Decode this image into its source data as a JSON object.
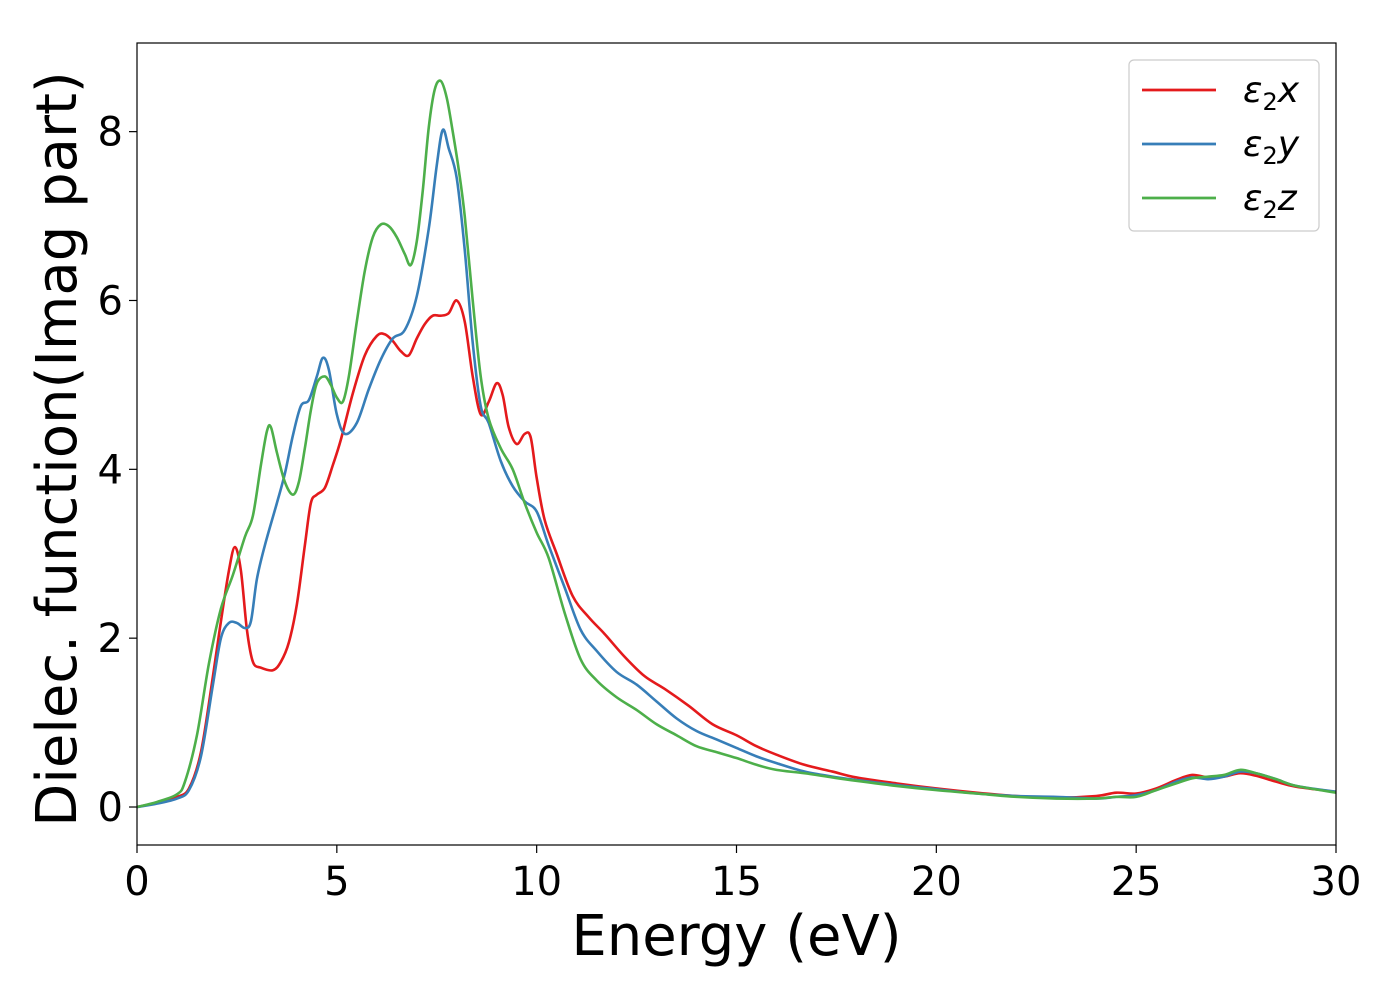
{
  "chart_data": {
    "type": "line",
    "xlabel": "Energy (eV)",
    "ylabel": "Dielec. function(Imag part)",
    "xlim": [
      0,
      30
    ],
    "ylim": [
      -0.45,
      9.05
    ],
    "xticks": [
      0,
      5,
      10,
      15,
      20,
      25,
      30
    ],
    "yticks": [
      0,
      2,
      4,
      6,
      8
    ],
    "grid": false,
    "legend_position": "top-right",
    "series": [
      {
        "name": "x",
        "legend_symbol": "ε",
        "legend_subscript": "2",
        "legend_axis": "x",
        "color": "#e41a1c",
        "x": [
          0,
          0.5,
          1.0,
          1.3,
          1.6,
          1.9,
          2.1,
          2.3,
          2.45,
          2.6,
          2.75,
          2.9,
          3.1,
          3.4,
          3.6,
          3.8,
          4.0,
          4.2,
          4.35,
          4.5,
          4.7,
          4.9,
          5.1,
          5.4,
          5.7,
          6.0,
          6.2,
          6.4,
          6.6,
          6.8,
          7.0,
          7.2,
          7.4,
          7.6,
          7.8,
          8.0,
          8.2,
          8.4,
          8.6,
          8.8,
          9.0,
          9.15,
          9.3,
          9.5,
          9.7,
          9.85,
          10.0,
          10.2,
          10.5,
          10.9,
          11.3,
          11.7,
          12.2,
          12.7,
          13.2,
          13.8,
          14.4,
          15.0,
          15.5,
          16.0,
          16.7,
          17.4,
          18.0,
          19.0,
          20.0,
          21.0,
          22.0,
          23.0,
          24.0,
          24.5,
          25.0,
          25.5,
          26.0,
          26.4,
          26.8,
          27.2,
          27.6,
          28.0,
          28.5,
          29.0,
          30.0
        ],
        "y": [
          0,
          0.05,
          0.12,
          0.22,
          0.65,
          1.55,
          2.2,
          2.8,
          3.08,
          2.8,
          2.1,
          1.72,
          1.65,
          1.62,
          1.72,
          1.95,
          2.4,
          3.1,
          3.6,
          3.7,
          3.78,
          4.05,
          4.35,
          4.9,
          5.35,
          5.58,
          5.6,
          5.52,
          5.4,
          5.35,
          5.55,
          5.72,
          5.82,
          5.82,
          5.85,
          6.0,
          5.75,
          5.1,
          4.65,
          4.8,
          5.02,
          4.88,
          4.5,
          4.3,
          4.42,
          4.38,
          3.9,
          3.4,
          3.0,
          2.5,
          2.25,
          2.05,
          1.78,
          1.55,
          1.4,
          1.2,
          0.98,
          0.85,
          0.72,
          0.62,
          0.5,
          0.42,
          0.35,
          0.28,
          0.22,
          0.17,
          0.13,
          0.11,
          0.13,
          0.17,
          0.16,
          0.22,
          0.32,
          0.38,
          0.35,
          0.36,
          0.4,
          0.37,
          0.3,
          0.24,
          0.18
        ]
      },
      {
        "name": "y",
        "legend_symbol": "ε",
        "legend_subscript": "2",
        "legend_axis": "y",
        "color": "#377eb8",
        "x": [
          0,
          0.5,
          1.0,
          1.3,
          1.6,
          1.9,
          2.1,
          2.3,
          2.5,
          2.7,
          2.85,
          3.0,
          3.2,
          3.5,
          3.7,
          3.9,
          4.1,
          4.3,
          4.5,
          4.65,
          4.8,
          5.0,
          5.2,
          5.5,
          5.8,
          6.1,
          6.4,
          6.7,
          7.0,
          7.3,
          7.5,
          7.65,
          7.8,
          8.0,
          8.2,
          8.4,
          8.6,
          8.8,
          9.1,
          9.4,
          9.7,
          10.0,
          10.3,
          10.7,
          11.1,
          11.5,
          12.0,
          12.5,
          13.0,
          13.5,
          14.0,
          14.5,
          15.0,
          15.5,
          16.0,
          16.7,
          17.4,
          18.0,
          19.0,
          20.0,
          21.0,
          22.0,
          23.0,
          24.0,
          24.5,
          25.0,
          25.5,
          26.0,
          26.4,
          26.8,
          27.2,
          27.6,
          28.0,
          28.5,
          29.0,
          30.0
        ],
        "y": [
          0,
          0.04,
          0.1,
          0.2,
          0.6,
          1.45,
          2.0,
          2.18,
          2.18,
          2.12,
          2.2,
          2.7,
          3.1,
          3.6,
          3.95,
          4.4,
          4.75,
          4.82,
          5.1,
          5.32,
          5.18,
          4.65,
          4.42,
          4.55,
          4.95,
          5.3,
          5.55,
          5.65,
          6.05,
          6.85,
          7.6,
          8.02,
          7.8,
          7.45,
          6.6,
          5.5,
          4.75,
          4.55,
          4.1,
          3.8,
          3.62,
          3.5,
          3.1,
          2.6,
          2.1,
          1.85,
          1.6,
          1.45,
          1.25,
          1.05,
          0.9,
          0.8,
          0.7,
          0.6,
          0.52,
          0.42,
          0.36,
          0.32,
          0.26,
          0.21,
          0.16,
          0.13,
          0.12,
          0.1,
          0.12,
          0.14,
          0.2,
          0.3,
          0.35,
          0.33,
          0.36,
          0.42,
          0.4,
          0.33,
          0.25,
          0.18
        ]
      },
      {
        "name": "z",
        "legend_symbol": "ε",
        "legend_subscript": "2",
        "legend_axis": "z",
        "color": "#4daf4a",
        "x": [
          0,
          0.5,
          1.0,
          1.2,
          1.5,
          1.8,
          2.1,
          2.4,
          2.7,
          2.9,
          3.1,
          3.25,
          3.35,
          3.5,
          3.7,
          3.9,
          4.05,
          4.2,
          4.35,
          4.5,
          4.7,
          4.85,
          5.0,
          5.15,
          5.3,
          5.5,
          5.7,
          5.9,
          6.1,
          6.3,
          6.5,
          6.7,
          6.85,
          7.0,
          7.15,
          7.3,
          7.45,
          7.6,
          7.75,
          7.9,
          8.05,
          8.2,
          8.4,
          8.6,
          8.8,
          9.1,
          9.4,
          9.7,
          10.0,
          10.3,
          10.7,
          11.1,
          11.5,
          12.0,
          12.5,
          13.0,
          13.5,
          14.0,
          14.5,
          15.0,
          15.5,
          16.0,
          16.7,
          17.4,
          18.0,
          19.0,
          20.0,
          21.0,
          22.0,
          23.0,
          24.0,
          24.5,
          25.0,
          25.5,
          26.0,
          26.4,
          26.8,
          27.2,
          27.6,
          28.0,
          28.5,
          29.0,
          30.0
        ],
        "y": [
          0,
          0.06,
          0.15,
          0.3,
          0.85,
          1.7,
          2.35,
          2.75,
          3.2,
          3.45,
          4.05,
          4.45,
          4.5,
          4.2,
          3.85,
          3.7,
          3.85,
          4.25,
          4.7,
          5.02,
          5.1,
          5.0,
          4.85,
          4.8,
          5.1,
          5.75,
          6.35,
          6.75,
          6.9,
          6.88,
          6.75,
          6.55,
          6.42,
          6.7,
          7.3,
          8.05,
          8.5,
          8.6,
          8.4,
          8.0,
          7.55,
          7.0,
          6.0,
          5.1,
          4.6,
          4.25,
          4.0,
          3.6,
          3.25,
          2.95,
          2.3,
          1.75,
          1.5,
          1.3,
          1.15,
          0.98,
          0.85,
          0.72,
          0.65,
          0.58,
          0.5,
          0.44,
          0.4,
          0.35,
          0.31,
          0.25,
          0.2,
          0.16,
          0.12,
          0.1,
          0.1,
          0.12,
          0.12,
          0.2,
          0.28,
          0.34,
          0.36,
          0.38,
          0.44,
          0.4,
          0.33,
          0.25,
          0.17
        ]
      }
    ]
  }
}
